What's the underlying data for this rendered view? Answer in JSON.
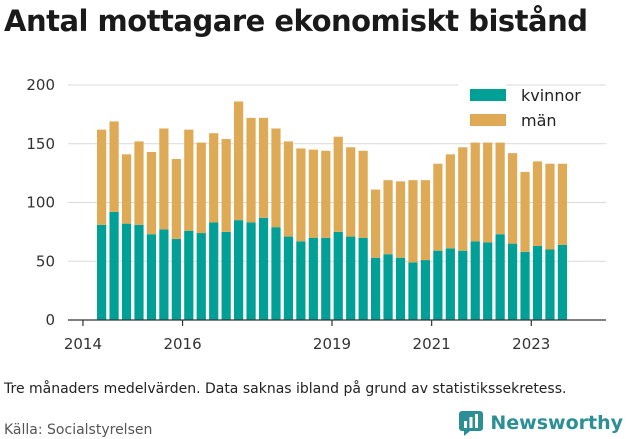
{
  "title": "Antal mottagare ekonomiskt bistånd",
  "caption": "Tre månaders medelvärden. Data saknas ibland på grund av statistikssekretess.",
  "source": "Källa: Socialstyrelsen",
  "brand": "Newsworthy",
  "colors": {
    "kvinnor": "#00a097",
    "man": "#dfaa55",
    "grid": "#d9d9d9"
  },
  "chart_data": {
    "type": "bar",
    "stacked": true,
    "title": "Antal mottagare ekonomiskt bistånd",
    "xlabel": "",
    "ylabel": "",
    "ylim": [
      0,
      200
    ],
    "yticks": [
      0,
      50,
      100,
      150,
      200
    ],
    "xlim": [
      2013.7,
      2024.5
    ],
    "xticks": [
      2014,
      2016,
      2019,
      2021,
      2023
    ],
    "grid": true,
    "legend": "top-right",
    "x": [
      2014.375,
      2014.625,
      2014.875,
      2015.125,
      2015.375,
      2015.625,
      2015.875,
      2016.125,
      2016.375,
      2016.625,
      2016.875,
      2017.125,
      2017.375,
      2017.625,
      2017.875,
      2018.125,
      2018.375,
      2018.625,
      2018.875,
      2019.125,
      2019.375,
      2019.625,
      2019.875,
      2020.125,
      2020.375,
      2020.625,
      2020.875,
      2021.125,
      2021.375,
      2021.625,
      2021.875,
      2022.125,
      2022.375,
      2022.625,
      2022.875,
      2023.125,
      2023.375,
      2023.625
    ],
    "series": [
      {
        "name": "kvinnor",
        "values": [
          81,
          92,
          82,
          81,
          73,
          77,
          69,
          76,
          74,
          83,
          75,
          85,
          83,
          87,
          79,
          71,
          67,
          70,
          70,
          75,
          71,
          70,
          53,
          56,
          53,
          49,
          51,
          59,
          61,
          59,
          67,
          66,
          73,
          65,
          58,
          63,
          60,
          64
        ]
      },
      {
        "name": "män",
        "values": [
          81,
          77,
          59,
          71,
          70,
          86,
          68,
          86,
          77,
          76,
          79,
          101,
          89,
          85,
          84,
          81,
          79,
          75,
          74,
          81,
          76,
          74,
          58,
          63,
          65,
          70,
          68,
          74,
          80,
          88,
          84,
          85,
          78,
          77,
          68,
          72,
          73,
          69
        ]
      }
    ],
    "totals": [
      162,
      169,
      141,
      152,
      143,
      163,
      137,
      162,
      151,
      159,
      154,
      186,
      172,
      172,
      163,
      152,
      146,
      145,
      144,
      156,
      147,
      144,
      111,
      119,
      118,
      119,
      119,
      133,
      141,
      147,
      151,
      151,
      151,
      142,
      126,
      135,
      133,
      133
    ]
  }
}
